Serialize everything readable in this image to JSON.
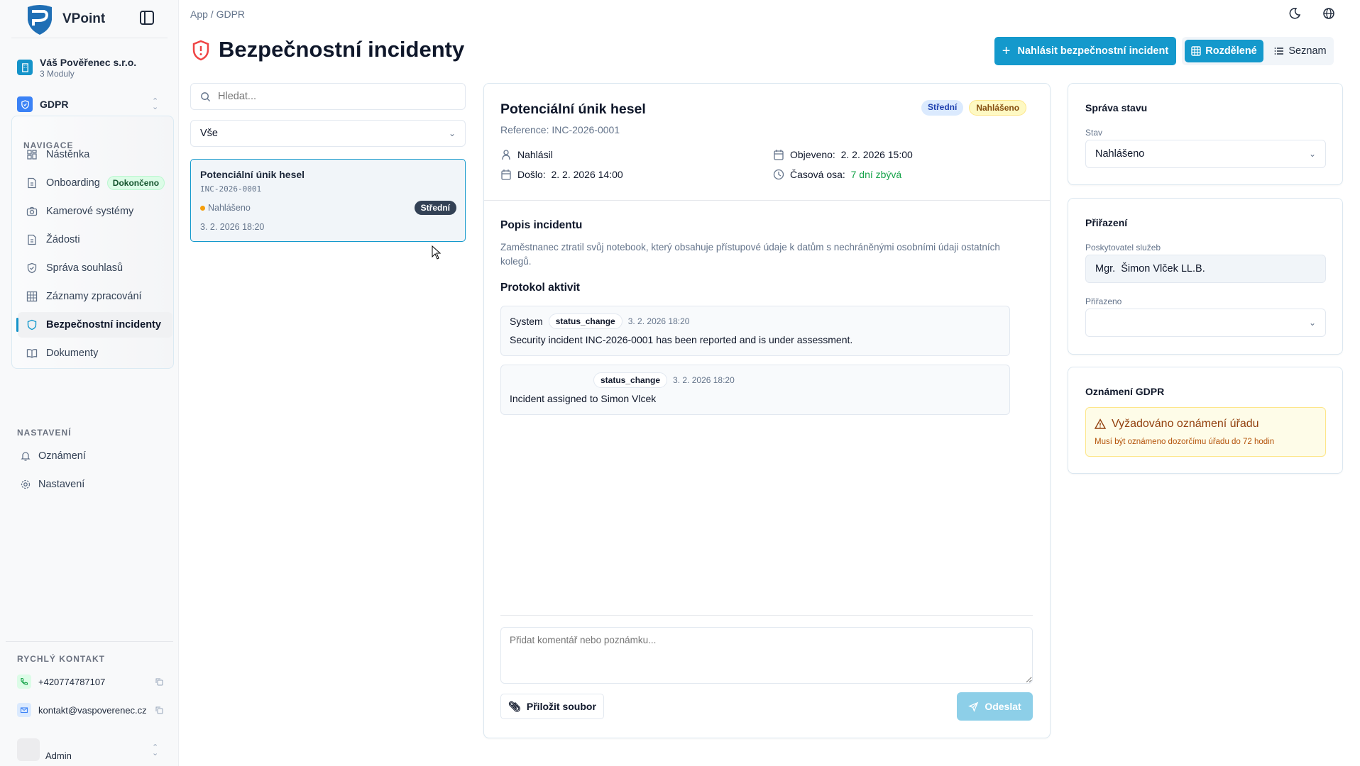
{
  "sidebar": {
    "brand": "VPoint",
    "company": {
      "name": "Váš Pověřenec s.r.o.",
      "modules": "3 Moduly"
    },
    "module": "GDPR",
    "nav_title": "NAVIGACE",
    "nav": [
      {
        "label": "Nástěnka",
        "icon": "dashboard-icon"
      },
      {
        "label": "Onboarding",
        "icon": "file-icon",
        "badge": "Dokončeno"
      },
      {
        "label": "Kamerové systémy",
        "icon": "camera-icon"
      },
      {
        "label": "Žádosti",
        "icon": "file-icon"
      },
      {
        "label": "Správa souhlasů",
        "icon": "shield-check-icon"
      },
      {
        "label": "Záznamy zpracování",
        "icon": "table-icon"
      },
      {
        "label": "Bezpečnostní incidenty",
        "icon": "shield-icon",
        "active": true
      },
      {
        "label": "Dokumenty",
        "icon": "book-icon"
      }
    ],
    "settings_title": "NASTAVENÍ",
    "settings": [
      {
        "label": "Oznámení",
        "icon": "bell-icon"
      },
      {
        "label": "Nastavení",
        "icon": "gear-icon"
      }
    ],
    "contact_title": "RYCHLÝ KONTAKT",
    "phone": "+420774787107",
    "email": "kontakt@vaspoverenec.cz",
    "user": "Admin"
  },
  "header": {
    "breadcrumb": "App / GDPR",
    "title": "Bezpečnostní incidenty",
    "report_button": "Nahlásit bezpečnostní incident",
    "view_split": "Rozdělené",
    "view_list": "Seznam"
  },
  "list": {
    "search_placeholder": "Hledat...",
    "filter": "Vše",
    "items": [
      {
        "title": "Potenciální únik hesel",
        "ref": "INC-2026-0001",
        "status": "Nahlášeno",
        "severity": "Střední",
        "date": "3. 2. 2026 18:20"
      }
    ]
  },
  "detail": {
    "title": "Potenciální únik hesel",
    "reference": "Reference: INC-2026-0001",
    "severity": "Střední",
    "status": "Nahlášeno",
    "reported_by_label": "Nahlásil",
    "occurred_label": "Došlo:",
    "occurred": "2. 2. 2026 14:00",
    "discovered_label": "Objeveno:",
    "discovered": "2. 2. 2026 15:00",
    "timeline_label": "Časová osa:",
    "timeline": "7 dní zbývá",
    "description_title": "Popis incidentu",
    "description": "Zaměstnanec ztratil svůj notebook, který obsahuje přístupové údaje k datům s nechráněnými osobními údaji ostatních kolegů.",
    "activity_title": "Protokol aktivit",
    "activity": [
      {
        "author": "System",
        "type": "status_change",
        "time": "3. 2. 2026 18:20",
        "text": "Security incident INC-2026-0001 has been reported and is under assessment."
      },
      {
        "author": "",
        "type": "status_change",
        "time": "3. 2. 2026 18:20",
        "text": "Incident assigned to Simon Vlcek"
      }
    ],
    "comment_placeholder": "Přidat komentář nebo poznámku...",
    "attach_button": "Přiložit soubor",
    "send_button": "Odeslat"
  },
  "right": {
    "state_title": "Správa stavu",
    "state_label": "Stav",
    "state_value": "Nahlášeno",
    "assign_title": "Přiřazení",
    "provider_label": "Poskytovatel služeb",
    "provider_value": "Mgr.  Šimon Vlček LL.B.",
    "assigned_label": "Přiřazeno",
    "assigned_value": "",
    "gdpr_title": "Oznámení GDPR",
    "alert_title": "Vyžadováno oznámení úřadu",
    "alert_text": "Musí být oznámeno dozorčímu úřadu do 72 hodin"
  },
  "colors": {
    "accent": "#1499cc",
    "danger": "#ef4444",
    "success": "#16a34a",
    "warning": "#f59e0b"
  }
}
